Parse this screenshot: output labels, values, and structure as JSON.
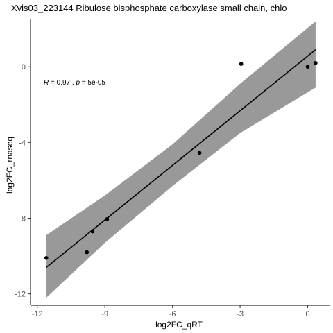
{
  "chart_data": {
    "type": "scatter",
    "title": "Xvis03_223144   Ribulose bisphosphate carboxylase small chain, chlo",
    "xlabel": "log2FC_qRT",
    "ylabel": "log2FC_rnaseq",
    "xlim": [
      -12.3,
      1.0
    ],
    "ylim": [
      -12.6,
      2.5
    ],
    "x_ticks": [
      -12,
      -9,
      -6,
      -3,
      0
    ],
    "y_ticks": [
      -12,
      -8,
      -4,
      0
    ],
    "x_tick_labels": [
      "-12",
      "-9",
      "-6",
      "-3",
      "0"
    ],
    "y_tick_labels": [
      "-12",
      "-8",
      "-4",
      "0"
    ],
    "points": [
      {
        "x": -11.6,
        "y": -10.1
      },
      {
        "x": -9.8,
        "y": -9.8
      },
      {
        "x": -9.55,
        "y": -8.7
      },
      {
        "x": -8.9,
        "y": -8.05
      },
      {
        "x": -4.8,
        "y": -4.55
      },
      {
        "x": -2.95,
        "y": 0.15
      },
      {
        "x": 0.0,
        "y": 0.0
      },
      {
        "x": 0.35,
        "y": 0.2
      }
    ],
    "fit": {
      "x_start": -11.6,
      "y_start": -10.6,
      "x_end": 0.35,
      "y_end": 0.9
    },
    "confidence_band": [
      {
        "x": -11.6,
        "lower": -12.2,
        "upper": -8.9
      },
      {
        "x": -9.0,
        "lower": -9.3,
        "upper": -6.8
      },
      {
        "x": -6.0,
        "lower": -6.3,
        "upper": -4.1
      },
      {
        "x": -3.0,
        "lower": -3.5,
        "upper": -0.9
      },
      {
        "x": 0.35,
        "lower": -1.1,
        "upper": 2.4
      }
    ],
    "annotation": {
      "r_prefix": "R",
      "r_value": " = 0.97 , ",
      "p_prefix": "p",
      "p_value": " = 5e-05"
    },
    "grid": false,
    "legend": "none",
    "colors": {
      "band": "#999999",
      "line": "#000000",
      "point": "#000000"
    }
  }
}
